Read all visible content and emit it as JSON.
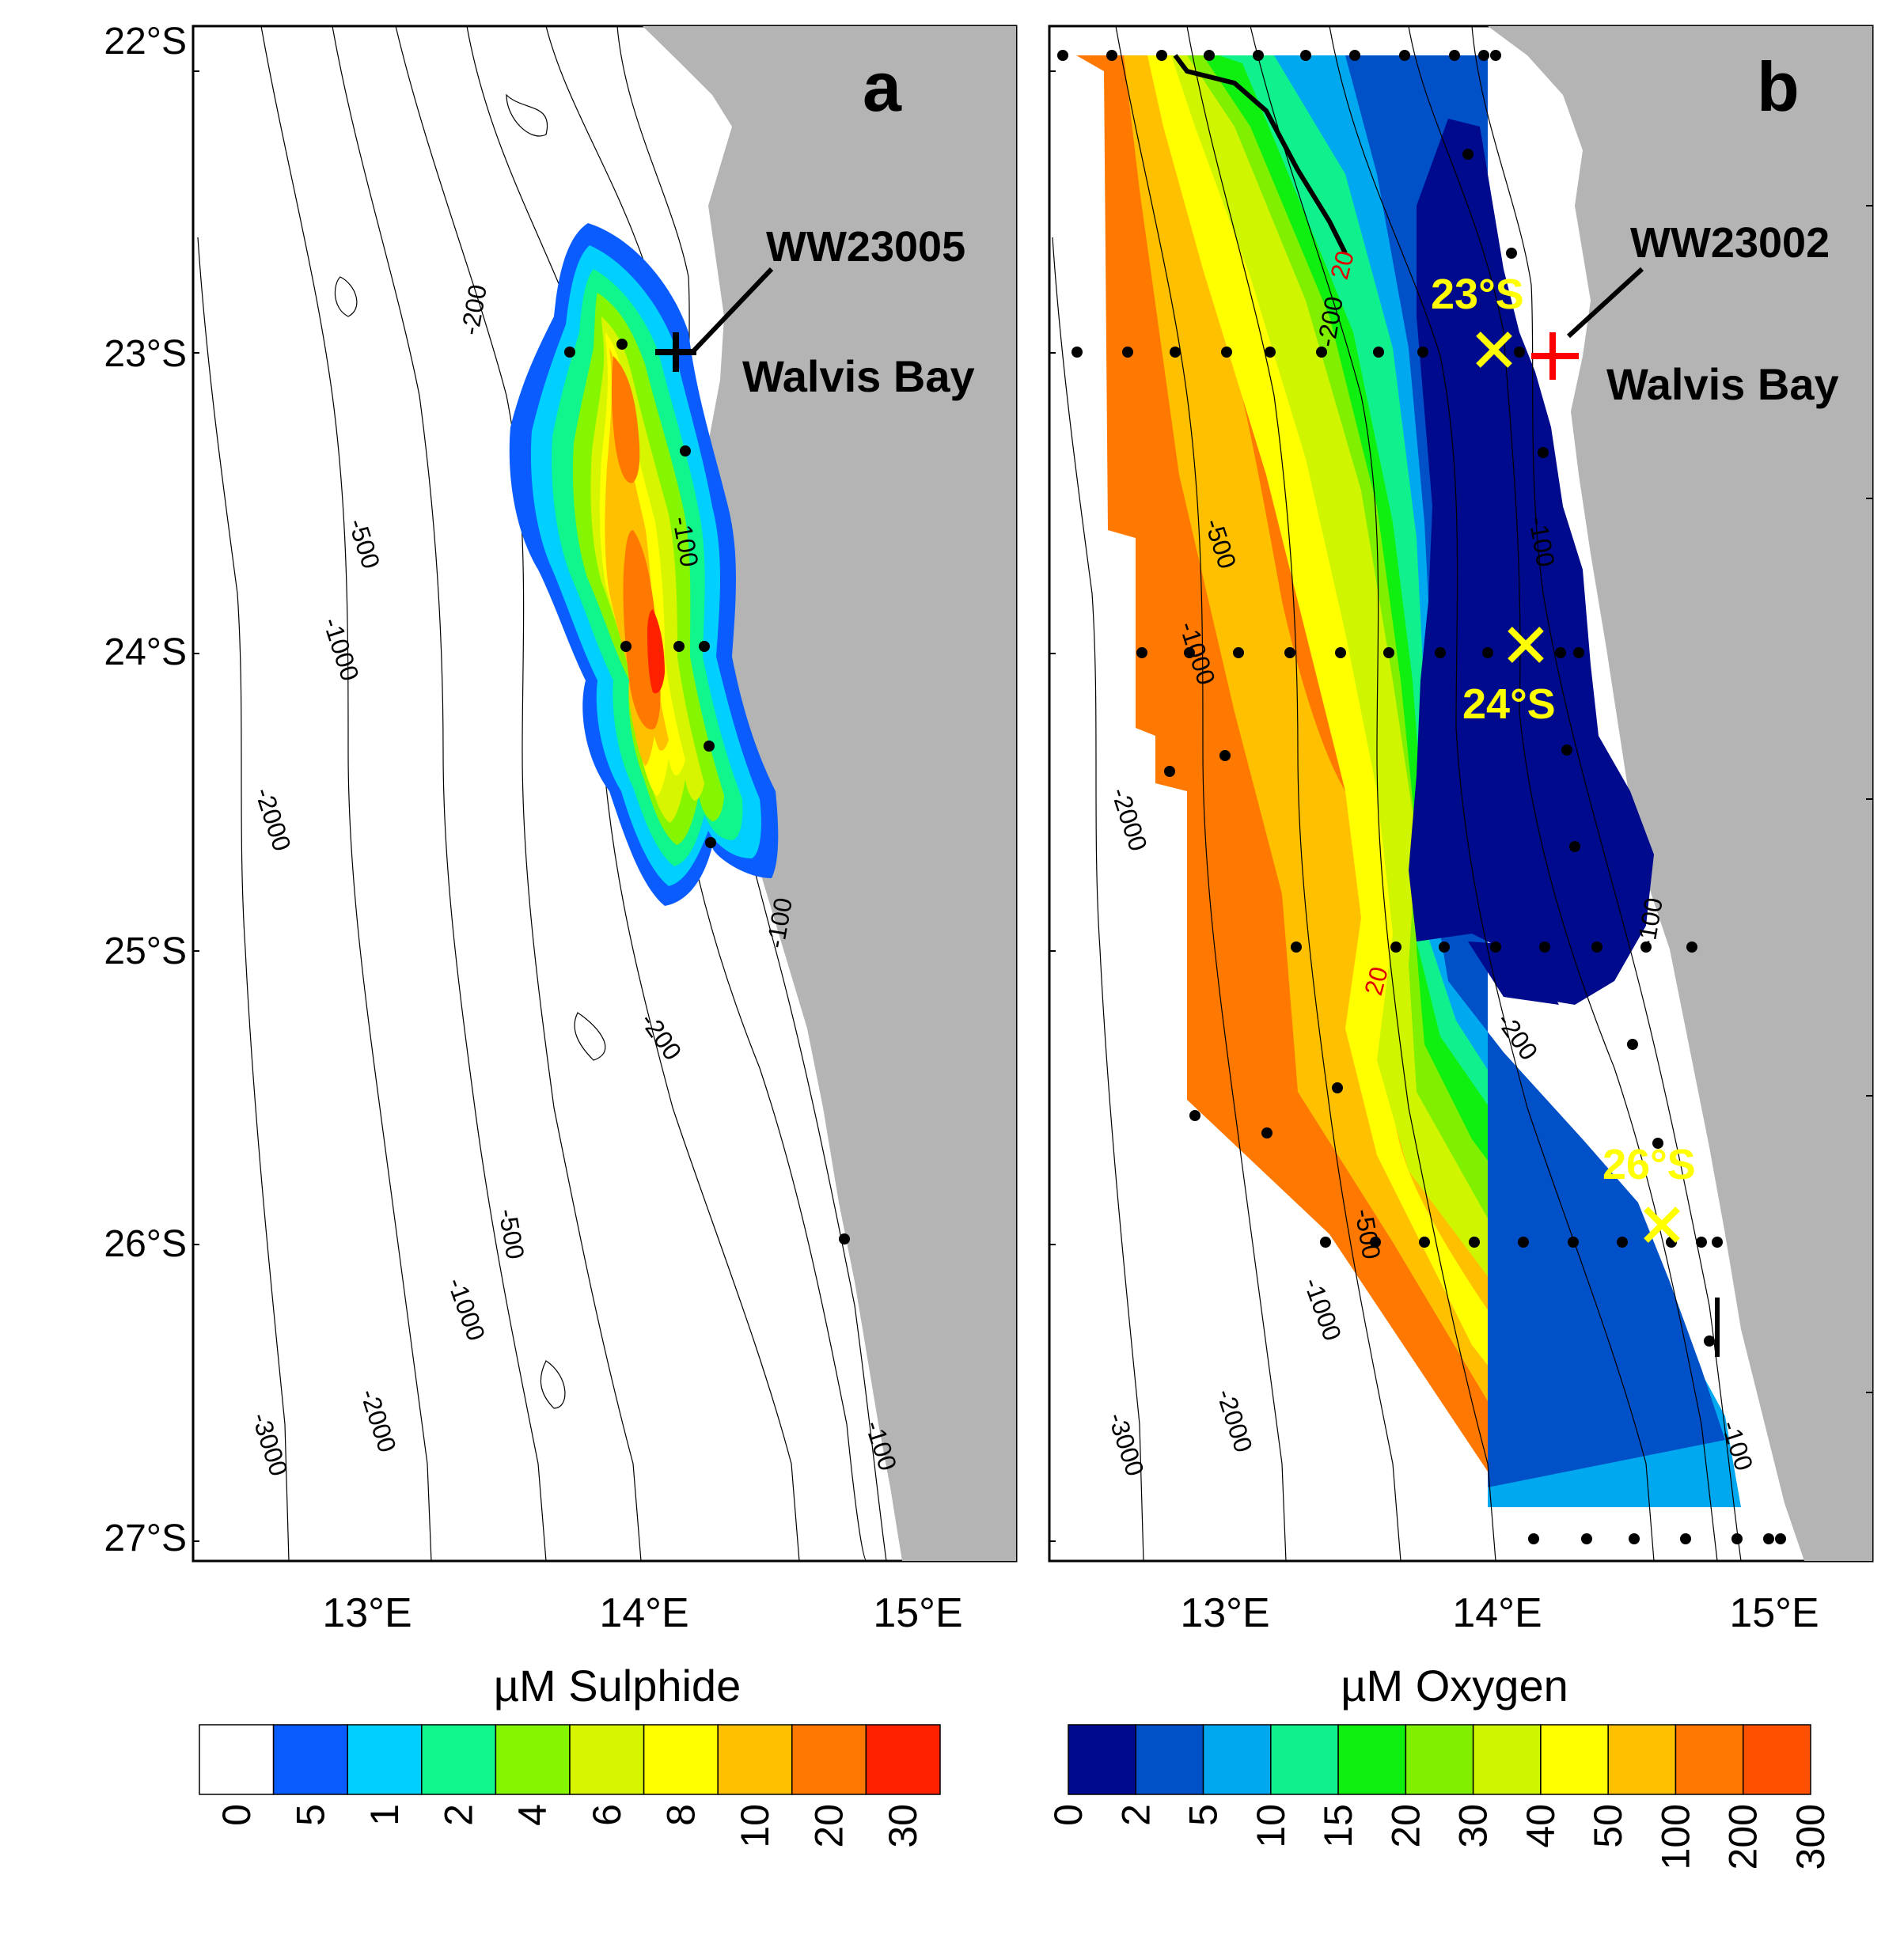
{
  "panels": {
    "a": {
      "letter": "a",
      "station": "WW23005",
      "place": "Walvis Bay",
      "lat_labels": [
        "22°S",
        "23°S",
        "24°S",
        "25°S",
        "26°S",
        "27°S"
      ],
      "lon_labels": [
        "13°E",
        "14°E",
        "15°E"
      ],
      "contour_labels": [
        "-200",
        "-500",
        "-1000",
        "-100",
        "-2000",
        "-100",
        "-200",
        "-500",
        "-1000",
        "-2000",
        "-3000",
        "-100"
      ]
    },
    "b": {
      "letter": "b",
      "station": "WW23002",
      "place": "Walvis Bay",
      "lat_labels": [
        "23°S",
        "24°S",
        "26°S"
      ],
      "lon_labels": [
        "13°E",
        "14°E",
        "15°E"
      ],
      "contour_labels": [
        "-200",
        "-500",
        "-1000",
        "-2000",
        "-100",
        "-100",
        "-200",
        "-500",
        "-1000",
        "-2000",
        "-3000",
        "-100"
      ],
      "red_labels": [
        "20",
        "20"
      ]
    }
  },
  "colorbars": {
    "sulphide": {
      "title": "µM Sulphide",
      "ticks": [
        "0",
        "5",
        "1",
        "2",
        "4",
        "6",
        "8",
        "10",
        "20",
        "30"
      ],
      "colors": [
        "#ffffff",
        "#0a5cff",
        "#00d0ff",
        "#10f58c",
        "#86f500",
        "#d8f500",
        "#ffff00",
        "#ffc000",
        "#ff7800",
        "#ff2000"
      ]
    },
    "oxygen": {
      "title": "µM Oxygen",
      "ticks": [
        "0",
        "2",
        "5",
        "10",
        "15",
        "20",
        "30",
        "40",
        "50",
        "100",
        "200",
        "300"
      ],
      "colors": [
        "#000a8c",
        "#0050c8",
        "#00a8f0",
        "#10f08c",
        "#10f010",
        "#80f000",
        "#d0f500",
        "#ffff00",
        "#ffc000",
        "#ff7800",
        "#ff5000"
      ]
    }
  }
}
